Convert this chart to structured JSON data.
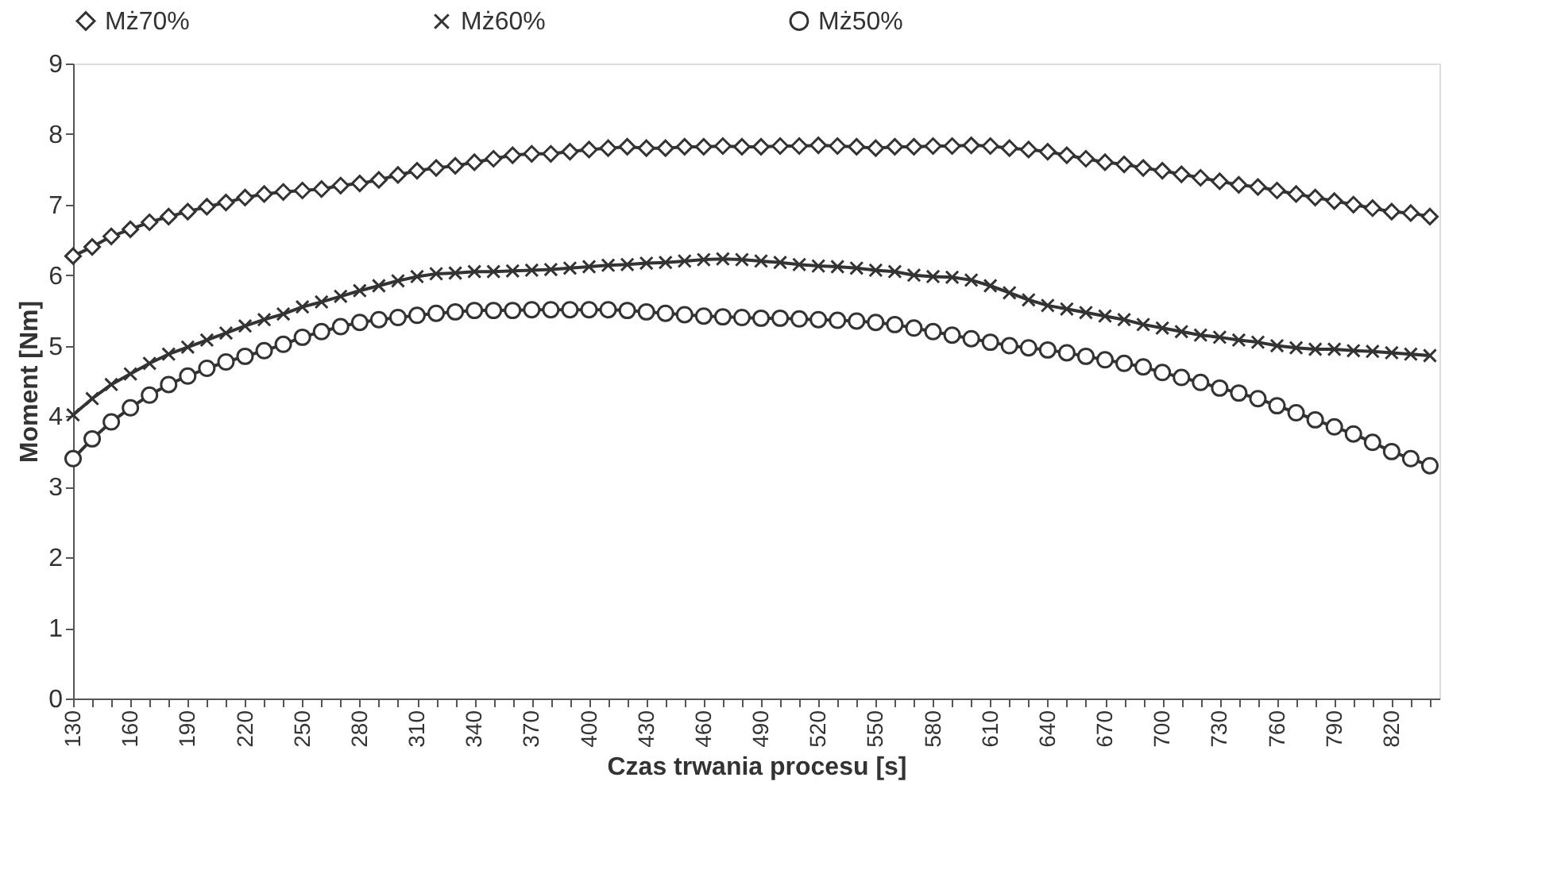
{
  "chart_data": {
    "type": "line",
    "xlabel": "Czas trwania procesu [s]",
    "ylabel": "Moment [Nm]",
    "x": [
      130,
      140,
      150,
      160,
      170,
      180,
      190,
      200,
      210,
      220,
      230,
      240,
      250,
      260,
      270,
      280,
      290,
      300,
      310,
      320,
      330,
      340,
      350,
      360,
      370,
      380,
      390,
      400,
      410,
      420,
      430,
      440,
      450,
      460,
      470,
      480,
      490,
      500,
      510,
      520,
      530,
      540,
      550,
      560,
      570,
      580,
      590,
      600,
      610,
      620,
      630,
      640,
      650,
      660,
      670,
      680,
      690,
      700,
      710,
      720,
      730,
      740,
      750,
      760,
      770,
      780,
      790,
      800,
      810,
      820,
      830,
      840
    ],
    "series": [
      {
        "name": "Mż70%",
        "color": "#333333",
        "marker": "diamond",
        "values": [
          6.27,
          6.4,
          6.55,
          6.65,
          6.75,
          6.83,
          6.9,
          6.97,
          7.03,
          7.1,
          7.15,
          7.18,
          7.2,
          7.22,
          7.27,
          7.3,
          7.35,
          7.42,
          7.48,
          7.52,
          7.55,
          7.6,
          7.65,
          7.7,
          7.72,
          7.72,
          7.75,
          7.78,
          7.8,
          7.82,
          7.8,
          7.8,
          7.82,
          7.82,
          7.83,
          7.82,
          7.82,
          7.83,
          7.83,
          7.84,
          7.83,
          7.82,
          7.8,
          7.82,
          7.82,
          7.83,
          7.83,
          7.84,
          7.83,
          7.8,
          7.78,
          7.75,
          7.7,
          7.65,
          7.6,
          7.57,
          7.52,
          7.48,
          7.43,
          7.38,
          7.33,
          7.28,
          7.25,
          7.2,
          7.15,
          7.1,
          7.05,
          7.0,
          6.95,
          6.9,
          6.88,
          6.83
        ]
      },
      {
        "name": "Mż60%",
        "color": "#333333",
        "marker": "cross",
        "values": [
          4.02,
          4.25,
          4.45,
          4.6,
          4.75,
          4.88,
          4.98,
          5.08,
          5.18,
          5.28,
          5.37,
          5.45,
          5.55,
          5.62,
          5.7,
          5.78,
          5.85,
          5.92,
          5.98,
          6.02,
          6.03,
          6.05,
          6.05,
          6.06,
          6.07,
          6.08,
          6.1,
          6.12,
          6.14,
          6.15,
          6.17,
          6.18,
          6.2,
          6.22,
          6.23,
          6.22,
          6.2,
          6.18,
          6.15,
          6.13,
          6.12,
          6.1,
          6.07,
          6.05,
          6.0,
          5.98,
          5.97,
          5.93,
          5.85,
          5.75,
          5.65,
          5.57,
          5.52,
          5.47,
          5.42,
          5.37,
          5.3,
          5.25,
          5.2,
          5.15,
          5.12,
          5.08,
          5.05,
          5.0,
          4.97,
          4.95,
          4.95,
          4.93,
          4.92,
          4.9,
          4.88,
          4.86
        ]
      },
      {
        "name": "Mż50%",
        "color": "#333333",
        "marker": "circle",
        "values": [
          3.4,
          3.68,
          3.92,
          4.12,
          4.3,
          4.45,
          4.57,
          4.68,
          4.77,
          4.85,
          4.93,
          5.02,
          5.12,
          5.2,
          5.27,
          5.33,
          5.37,
          5.4,
          5.43,
          5.46,
          5.48,
          5.5,
          5.5,
          5.5,
          5.51,
          5.51,
          5.51,
          5.51,
          5.51,
          5.5,
          5.48,
          5.46,
          5.44,
          5.42,
          5.41,
          5.4,
          5.39,
          5.39,
          5.38,
          5.37,
          5.36,
          5.35,
          5.33,
          5.3,
          5.25,
          5.2,
          5.15,
          5.1,
          5.05,
          5.0,
          4.97,
          4.94,
          4.9,
          4.85,
          4.8,
          4.75,
          4.7,
          4.62,
          4.55,
          4.48,
          4.4,
          4.33,
          4.25,
          4.15,
          4.05,
          3.95,
          3.85,
          3.75,
          3.63,
          3.5,
          3.4,
          3.3
        ]
      }
    ],
    "xlim": [
      130,
      845
    ],
    "xticks": [
      130,
      {
        "value": 140,
        "label": null
      },
      {
        "value": 150,
        "label": null
      },
      160,
      {
        "value": 170,
        "label": null
      },
      {
        "value": 180,
        "label": null
      },
      190,
      {
        "value": 200,
        "label": null
      },
      {
        "value": 210,
        "label": null
      },
      220,
      {
        "value": 230,
        "label": null
      },
      {
        "value": 240,
        "label": null
      },
      250,
      {
        "value": 260,
        "label": null
      },
      {
        "value": 270,
        "label": null
      },
      280,
      {
        "value": 290,
        "label": null
      },
      {
        "value": 300,
        "label": null
      },
      310,
      {
        "value": 320,
        "label": null
      },
      {
        "value": 330,
        "label": null
      },
      340,
      {
        "value": 350,
        "label": null
      },
      {
        "value": 360,
        "label": null
      },
      370,
      {
        "value": 380,
        "label": null
      },
      {
        "value": 390,
        "label": null
      },
      400,
      {
        "value": 410,
        "label": null
      },
      {
        "value": 420,
        "label": null
      },
      430,
      {
        "value": 440,
        "label": null
      },
      {
        "value": 450,
        "label": null
      },
      460,
      {
        "value": 470,
        "label": null
      },
      {
        "value": 480,
        "label": null
      },
      490,
      {
        "value": 500,
        "label": null
      },
      {
        "value": 510,
        "label": null
      },
      520,
      {
        "value": 530,
        "label": null
      },
      {
        "value": 540,
        "label": null
      },
      550,
      {
        "value": 560,
        "label": null
      },
      {
        "value": 570,
        "label": null
      },
      580,
      {
        "value": 590,
        "label": null
      },
      {
        "value": 600,
        "label": null
      },
      610,
      {
        "value": 620,
        "label": null
      },
      {
        "value": 630,
        "label": null
      },
      640,
      {
        "value": 650,
        "label": null
      },
      {
        "value": 660,
        "label": null
      },
      670,
      {
        "value": 680,
        "label": null
      },
      {
        "value": 690,
        "label": null
      },
      700,
      {
        "value": 710,
        "label": null
      },
      {
        "value": 720,
        "label": null
      },
      730,
      {
        "value": 740,
        "label": null
      },
      {
        "value": 750,
        "label": null
      },
      760,
      {
        "value": 770,
        "label": null
      },
      {
        "value": 780,
        "label": null
      },
      790,
      {
        "value": 800,
        "label": null
      },
      {
        "value": 810,
        "label": null
      },
      820,
      {
        "value": 830,
        "label": null
      },
      {
        "value": 840,
        "label": null
      }
    ],
    "ylim": [
      0,
      9
    ],
    "yticks": [
      0,
      1,
      2,
      3,
      4,
      5,
      6,
      7,
      8,
      9
    ],
    "grid": false,
    "legend": "top",
    "line_style": "solid"
  }
}
